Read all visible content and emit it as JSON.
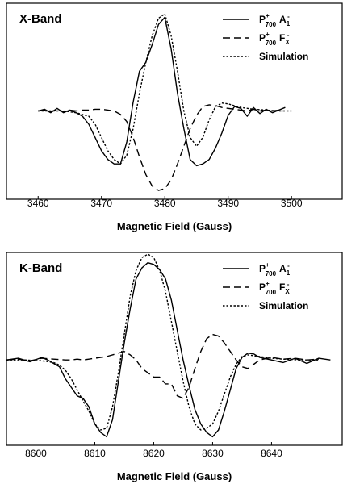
{
  "chart_data": [
    {
      "type": "line",
      "title": "X-Band",
      "xlabel": "Magnetic Field (Gauss)",
      "ylabel": "",
      "xlim": [
        3455,
        3508
      ],
      "ylim": [
        -1.0,
        1.22
      ],
      "xticks": [
        "3460",
        "3470",
        "3480",
        "3490",
        "3500"
      ],
      "legend_position": "top-right",
      "series": [
        {
          "name": "P700+ A1-",
          "legend": {
            "base": "P",
            "sup": "+",
            "sub": "700",
            "rest": "A",
            "rest_sub": "1",
            "rest_sup": "-"
          },
          "style": "solid",
          "x": [
            3460,
            3461,
            3462,
            3463,
            3464,
            3465,
            3466,
            3467,
            3468,
            3469,
            3470,
            3471,
            3472,
            3473,
            3474,
            3475,
            3476,
            3477,
            3478,
            3479,
            3480,
            3481,
            3482,
            3483,
            3484,
            3485,
            3486,
            3487,
            3488,
            3489,
            3490,
            3491,
            3492,
            3493,
            3494,
            3495,
            3496,
            3497,
            3498,
            3499
          ],
          "y": [
            0.0,
            0.02,
            -0.02,
            0.03,
            -0.02,
            0.01,
            -0.02,
            -0.06,
            -0.15,
            -0.3,
            -0.45,
            -0.55,
            -0.6,
            -0.6,
            -0.35,
            0.1,
            0.45,
            0.55,
            0.75,
            0.98,
            1.06,
            0.7,
            0.2,
            -0.2,
            -0.55,
            -0.62,
            -0.6,
            -0.55,
            -0.42,
            -0.25,
            -0.05,
            0.05,
            0.03,
            -0.06,
            0.04,
            -0.03,
            0.02,
            -0.02,
            0.01,
            0.04
          ]
        },
        {
          "name": "P700+ FX-",
          "legend": {
            "base": "P",
            "sup": "+",
            "sub": "700",
            "rest": "F",
            "rest_sub": "X",
            "rest_sup": "-"
          },
          "style": "dashed",
          "x": [
            3460,
            3461,
            3462,
            3463,
            3464,
            3465,
            3466,
            3467,
            3468,
            3469,
            3470,
            3471,
            3472,
            3473,
            3474,
            3475,
            3476,
            3477,
            3478,
            3479,
            3480,
            3481,
            3482,
            3483,
            3484,
            3485,
            3486,
            3487,
            3488,
            3489,
            3490,
            3491,
            3492,
            3493,
            3494,
            3495,
            3496,
            3497,
            3498
          ],
          "y": [
            0.0,
            0.01,
            -0.01,
            0.02,
            -0.01,
            0.01,
            0.0,
            0.01,
            0.01,
            0.02,
            0.02,
            0.01,
            0.0,
            -0.04,
            -0.12,
            -0.3,
            -0.52,
            -0.72,
            -0.85,
            -0.9,
            -0.88,
            -0.78,
            -0.6,
            -0.4,
            -0.2,
            -0.05,
            0.05,
            0.07,
            0.06,
            0.04,
            0.03,
            0.02,
            0.01,
            0.0,
            0.02,
            0.0,
            0.01,
            0.0,
            0.01
          ]
        },
        {
          "name": "Simulation",
          "legend": {
            "base": "Simulation"
          },
          "style": "dotted",
          "x": [
            3460,
            3462,
            3464,
            3466,
            3468,
            3469,
            3470,
            3471,
            3472,
            3473,
            3474,
            3475,
            3476,
            3477,
            3478,
            3479,
            3480,
            3481,
            3482,
            3483,
            3484,
            3485,
            3486,
            3487,
            3488,
            3489,
            3490,
            3492,
            3494,
            3496,
            3498,
            3500
          ],
          "y": [
            0.0,
            0.0,
            0.0,
            -0.02,
            -0.06,
            -0.15,
            -0.3,
            -0.45,
            -0.55,
            -0.6,
            -0.5,
            -0.2,
            0.2,
            0.55,
            0.85,
            1.05,
            1.1,
            0.85,
            0.45,
            0.0,
            -0.3,
            -0.4,
            -0.3,
            -0.1,
            0.05,
            0.09,
            0.08,
            0.04,
            0.02,
            0.01,
            0.0,
            0.0
          ]
        }
      ]
    },
    {
      "type": "line",
      "title": "K-Band",
      "xlabel": "Magnetic Field (Gauss)",
      "ylabel": "",
      "xlim": [
        8595,
        8652
      ],
      "ylim": [
        -1.0,
        1.26
      ],
      "xticks": [
        "8600",
        "8610",
        "8620",
        "8630",
        "8640"
      ],
      "legend_position": "top-right",
      "series": [
        {
          "name": "P700+ A1-",
          "legend": {
            "base": "P",
            "sup": "+",
            "sub": "700",
            "rest": "A",
            "rest_sub": "1",
            "rest_sup": "-"
          },
          "style": "solid",
          "x": [
            8595,
            8597,
            8599,
            8601,
            8602,
            8603,
            8604,
            8605,
            8606,
            8607,
            8608,
            8609,
            8610,
            8611,
            8612,
            8613,
            8614,
            8615,
            8616,
            8617,
            8618,
            8619,
            8620,
            8621,
            8622,
            8623,
            8624,
            8625,
            8626,
            8627,
            8628,
            8629,
            8630,
            8631,
            8632,
            8633,
            8634,
            8635,
            8636,
            8637,
            8638,
            8640,
            8642,
            8644,
            8646,
            8648,
            8650
          ],
          "y": [
            0.0,
            0.02,
            -0.02,
            0.03,
            0.0,
            -0.04,
            -0.08,
            -0.22,
            -0.32,
            -0.42,
            -0.45,
            -0.55,
            -0.75,
            -0.85,
            -0.9,
            -0.7,
            -0.25,
            0.2,
            0.6,
            0.95,
            1.08,
            1.14,
            1.12,
            1.06,
            0.95,
            0.7,
            0.35,
            0.0,
            -0.3,
            -0.58,
            -0.75,
            -0.85,
            -0.9,
            -0.82,
            -0.6,
            -0.35,
            -0.1,
            0.03,
            0.08,
            0.07,
            0.03,
            0.0,
            -0.03,
            0.02,
            -0.04,
            0.02,
            0.0
          ]
        },
        {
          "name": "P700+ FX-",
          "legend": {
            "base": "P",
            "sup": "+",
            "sub": "700",
            "rest": "F",
            "rest_sub": "X",
            "rest_sup": "-"
          },
          "style": "dashed",
          "x": [
            8595,
            8597,
            8599,
            8601,
            8603,
            8605,
            8606,
            8607,
            8608,
            8609,
            8610,
            8612,
            8614,
            8615,
            8616,
            8617,
            8618,
            8619,
            8620,
            8621,
            8622,
            8623,
            8624,
            8625,
            8626,
            8627,
            8628,
            8629,
            8630,
            8631,
            8632,
            8633,
            8634,
            8635,
            8636,
            8637,
            8638,
            8640,
            8642,
            8644,
            8646,
            8648
          ],
          "y": [
            0.0,
            0.01,
            -0.01,
            0.02,
            0.01,
            0.0,
            0.0,
            0.01,
            0.0,
            0.01,
            0.02,
            0.04,
            0.08,
            0.1,
            0.06,
            0.0,
            -0.1,
            -0.15,
            -0.2,
            -0.2,
            -0.28,
            -0.28,
            -0.42,
            -0.45,
            -0.32,
            -0.1,
            0.1,
            0.25,
            0.3,
            0.28,
            0.2,
            0.1,
            0.0,
            -0.08,
            -0.1,
            -0.05,
            0.0,
            0.03,
            0.01,
            0.02,
            0.0,
            0.01
          ]
        },
        {
          "name": "Simulation",
          "legend": {
            "base": "Simulation"
          },
          "style": "dotted",
          "x": [
            8595,
            8598,
            8601,
            8603,
            8604,
            8605,
            8606,
            8607,
            8608,
            8609,
            8610,
            8611,
            8612,
            8613,
            8614,
            8615,
            8616,
            8617,
            8618,
            8619,
            8620,
            8621,
            8622,
            8623,
            8624,
            8625,
            8626,
            8627,
            8628,
            8629,
            8630,
            8631,
            8632,
            8633,
            8634,
            8635,
            8636,
            8637,
            8638,
            8640,
            8642,
            8645,
            8648
          ],
          "y": [
            0.0,
            0.0,
            -0.01,
            -0.03,
            -0.06,
            -0.12,
            -0.22,
            -0.35,
            -0.48,
            -0.6,
            -0.75,
            -0.82,
            -0.8,
            -0.55,
            -0.15,
            0.3,
            0.75,
            1.05,
            1.2,
            1.24,
            1.2,
            1.05,
            0.8,
            0.45,
            0.1,
            -0.25,
            -0.55,
            -0.75,
            -0.82,
            -0.8,
            -0.75,
            -0.6,
            -0.4,
            -0.2,
            -0.05,
            0.04,
            0.06,
            0.05,
            0.04,
            0.02,
            0.01,
            0.0,
            0.0
          ]
        }
      ]
    }
  ]
}
